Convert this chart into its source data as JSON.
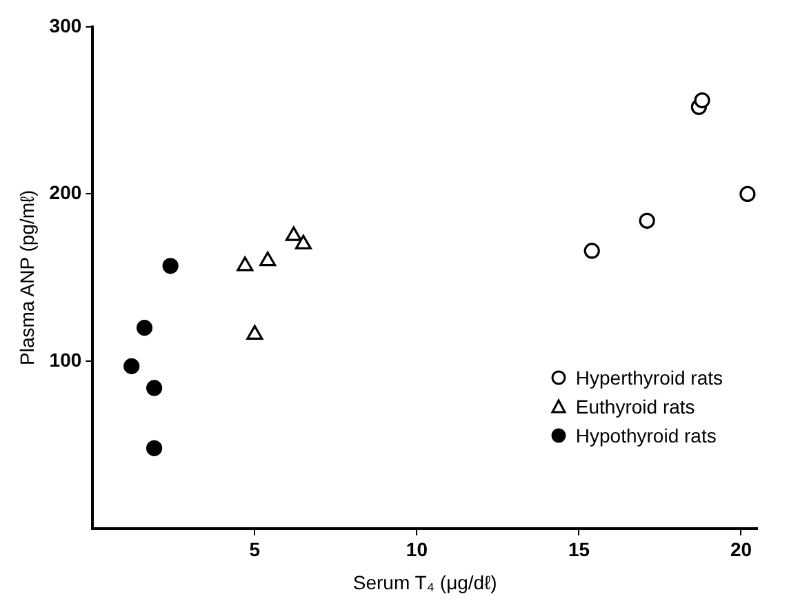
{
  "chart_data": {
    "type": "scatter",
    "xlabel": "Serum T₄ (μg/dℓ)",
    "ylabel": "Plasma ANP (pg/mℓ)",
    "xlim": [
      0,
      20.5
    ],
    "xticks": [
      5,
      10,
      15,
      20
    ],
    "ylim": [
      0,
      300
    ],
    "yticks": [
      100,
      200,
      300
    ],
    "grid": false,
    "legend": "bottom right",
    "series": [
      {
        "name": "Hyperthyroid rats",
        "color": "#000000",
        "marker": "circle",
        "x": [
          15.4,
          17.1,
          18.7,
          18.8,
          20.2
        ],
        "values": [
          166,
          184,
          252,
          256,
          200
        ]
      },
      {
        "name": "Euthyroid rats",
        "color": "#000000",
        "marker": "triangle",
        "x": [
          4.7,
          5.4,
          5.0,
          6.2,
          6.5
        ],
        "values": [
          157,
          160,
          116,
          175,
          170
        ]
      },
      {
        "name": "Hypothyroid rats",
        "color": "#000000",
        "marker": "circle",
        "x": [
          1.2,
          1.6,
          1.9,
          1.9,
          2.4
        ],
        "values": [
          97,
          120,
          84,
          48,
          157
        ]
      }
    ]
  }
}
